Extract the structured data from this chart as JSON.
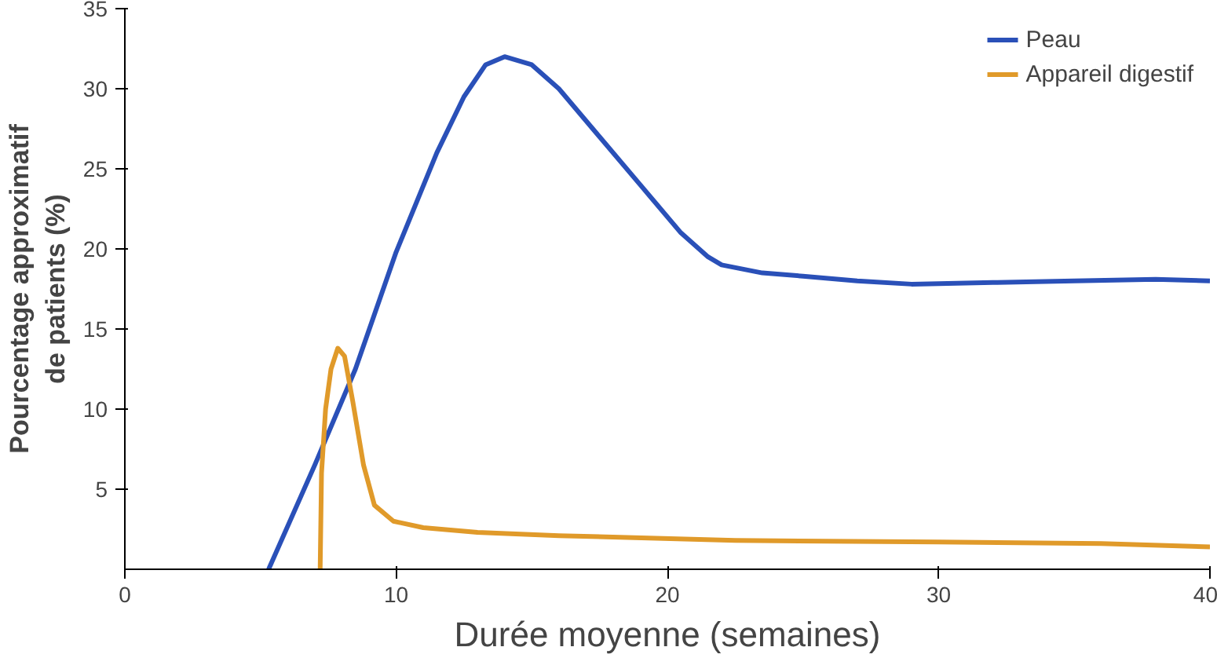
{
  "chart_data": {
    "type": "line",
    "xlabel": "Durée moyenne (semaines)",
    "ylabel": "Pourcentage approximatif\nde patients (%)",
    "xlim": [
      0,
      40
    ],
    "ylim": [
      0,
      35
    ],
    "xticks": [
      0,
      10,
      20,
      30,
      40
    ],
    "yticks": [
      5,
      10,
      15,
      20,
      25,
      30,
      35
    ],
    "grid": false,
    "legend": "top right",
    "series": [
      {
        "name": "Peau",
        "color": "#2a50b8",
        "x": [
          5.3,
          7,
          8.5,
          10,
          11.5,
          12.5,
          13.3,
          14,
          15,
          16,
          17.5,
          19,
          20.5,
          21.5,
          22,
          23.5,
          25,
          27,
          29,
          32,
          35,
          38,
          40
        ],
        "values": [
          0,
          6.5,
          12.5,
          19.8,
          26,
          29.5,
          31.5,
          32,
          31.5,
          30,
          27,
          24,
          21,
          19.5,
          19,
          18.5,
          18.3,
          18,
          17.8,
          17.9,
          18,
          18.1,
          18
        ]
      },
      {
        "name": "Appareil digestif",
        "color": "#e09a2a",
        "x": [
          7.2,
          7.25,
          7.4,
          7.6,
          7.85,
          8.1,
          8.4,
          8.8,
          9.2,
          9.9,
          11,
          13,
          16,
          22.5,
          30,
          36,
          40
        ],
        "values": [
          0,
          6,
          10,
          12.5,
          13.8,
          13.3,
          10.5,
          6.5,
          4,
          3,
          2.6,
          2.3,
          2.1,
          1.8,
          1.7,
          1.6,
          1.4
        ]
      }
    ]
  }
}
